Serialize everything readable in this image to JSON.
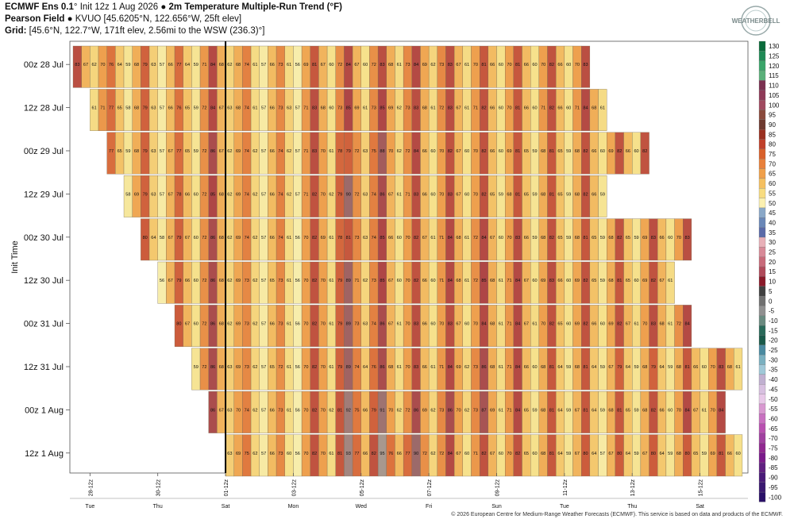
{
  "header": {
    "line1_bold": "ECMWF Ens 0.1",
    "line1_deg": "°",
    "line1_init": " Init 12z 1 Aug 2026 ",
    "line1_bullet": "●",
    "line1_title": " 2m Temperature Multiple-Run Trend (°F)",
    "line2_bold": "Pearson Field",
    "line2_rest": " ● KVUO [45.6205°N, 122.656°W, 25ft elev]",
    "line3_bold": "Grid:",
    "line3_rest": " [45.6°N, 122.7°W, 171ft elev, 2.56mi to the WSW (236.3)°]"
  },
  "logo_text": "WEATHERBELL",
  "footer": "© 2026 European Centre for Medium-Range Weather Forecasts (ECMWF). This service is based on data and products of the ECMWF.",
  "chart_data": {
    "type": "heatmap",
    "ylabel": "Init Time",
    "rows": [
      {
        "label": "00z 28 Jul",
        "start": 0,
        "values": [
          83,
          67,
          62,
          70,
          76,
          64,
          59,
          68,
          79,
          63,
          57,
          66,
          77,
          64,
          59,
          71,
          84,
          68,
          62,
          68,
          74,
          61,
          57,
          66,
          73,
          61,
          56,
          69,
          81,
          67,
          60,
          72,
          84,
          67,
          60,
          72,
          83,
          68,
          61,
          73,
          84,
          69,
          62,
          73,
          83,
          67,
          61,
          70,
          81,
          66,
          60,
          70,
          81,
          66,
          60,
          70,
          82,
          66,
          60,
          70,
          83
        ]
      },
      {
        "label": "12z 28 Jul",
        "start": 2,
        "values": [
          61,
          71,
          77,
          65,
          58,
          68,
          79,
          63,
          57,
          66,
          76,
          65,
          59,
          72,
          84,
          67,
          63,
          68,
          74,
          61,
          57,
          66,
          73,
          63,
          57,
          71,
          83,
          68,
          60,
          73,
          85,
          69,
          61,
          73,
          85,
          69,
          62,
          73,
          83,
          68,
          61,
          72,
          83,
          67,
          61,
          71,
          82,
          66,
          60,
          70,
          81,
          66,
          60,
          71,
          82,
          66,
          60,
          71,
          84,
          68,
          61
        ]
      },
      {
        "label": "00z 29 Jul",
        "start": 4,
        "values": [
          77,
          65,
          59,
          68,
          79,
          63,
          57,
          67,
          77,
          65,
          59,
          72,
          86,
          67,
          62,
          69,
          74,
          62,
          57,
          66,
          74,
          62,
          57,
          71,
          83,
          70,
          61,
          78,
          79,
          72,
          63,
          75,
          88,
          70,
          62,
          72,
          84,
          66,
          60,
          70,
          82,
          67,
          60,
          70,
          82,
          66,
          60,
          69,
          81,
          65,
          59,
          68,
          81,
          65,
          59,
          68,
          82,
          66,
          60,
          69,
          82,
          66,
          60,
          82
        ]
      },
      {
        "label": "12z 29 Jul",
        "start": 6,
        "values": [
          58,
          69,
          79,
          63,
          57,
          67,
          78,
          66,
          60,
          72,
          85,
          68,
          62,
          69,
          74,
          62,
          57,
          66,
          74,
          62,
          57,
          71,
          82,
          70,
          62,
          79,
          90,
          72,
          63,
          74,
          86,
          67,
          61,
          71,
          83,
          66,
          60,
          70,
          83,
          67,
          60,
          70,
          82,
          65,
          59,
          68,
          81,
          65,
          59,
          68,
          81,
          65,
          59,
          68,
          82,
          66,
          59
        ]
      },
      {
        "label": "00z 30 Jul",
        "start": 8,
        "values": [
          80,
          64,
          58,
          67,
          79,
          67,
          60,
          72,
          86,
          68,
          62,
          69,
          74,
          62,
          57,
          66,
          74,
          61,
          56,
          70,
          82,
          69,
          61,
          78,
          81,
          73,
          63,
          74,
          85,
          66,
          60,
          70,
          82,
          67,
          61,
          71,
          84,
          68,
          61,
          72,
          84,
          67,
          60,
          70,
          83,
          66,
          59,
          68,
          82,
          65,
          59,
          68,
          81,
          65,
          59,
          68,
          82,
          65,
          59,
          69,
          83,
          66,
          60,
          70,
          83
        ]
      },
      {
        "label": "12z 30 Jul",
        "start": 10,
        "values": [
          56,
          67,
          79,
          66,
          60,
          72,
          86,
          68,
          62,
          69,
          73,
          62,
          57,
          65,
          73,
          61,
          56,
          70,
          82,
          70,
          61,
          79,
          89,
          71,
          62,
          73,
          85,
          67,
          60,
          70,
          82,
          66,
          60,
          71,
          84,
          68,
          61,
          72,
          85,
          68,
          61,
          71,
          84,
          67,
          60,
          69,
          83,
          66,
          60,
          69,
          82,
          65,
          59,
          68,
          81,
          65,
          60,
          69,
          82,
          67,
          61
        ]
      },
      {
        "label": "00z 31 Jul",
        "start": 12,
        "values": [
          80,
          67,
          60,
          72,
          86,
          68,
          62,
          69,
          73,
          62,
          57,
          66,
          73,
          61,
          56,
          70,
          82,
          70,
          61,
          79,
          89,
          73,
          63,
          74,
          86,
          67,
          61,
          70,
          83,
          66,
          60,
          70,
          83,
          67,
          60,
          70,
          84,
          68,
          61,
          71,
          84,
          67,
          61,
          70,
          82,
          65,
          60,
          69,
          82,
          66,
          60,
          69,
          82,
          67,
          61,
          70,
          83,
          68,
          61,
          72,
          84
        ]
      },
      {
        "label": "12z 31 Jul",
        "start": 14,
        "values": [
          59,
          72,
          86,
          68,
          63,
          69,
          73,
          62,
          57,
          65,
          72,
          61,
          56,
          70,
          82,
          70,
          61,
          79,
          89,
          74,
          64,
          76,
          86,
          68,
          61,
          70,
          83,
          66,
          61,
          71,
          84,
          69,
          62,
          73,
          86,
          68,
          61,
          71,
          84,
          66,
          60,
          68,
          81,
          64,
          59,
          68,
          81,
          64,
          59,
          67,
          79,
          64,
          59,
          68,
          79,
          64,
          59,
          68,
          81,
          66,
          60,
          70,
          83,
          68,
          61
        ]
      },
      {
        "label": "00z 1 Aug",
        "start": 16,
        "values": [
          86,
          67,
          63,
          70,
          74,
          62,
          57,
          66,
          73,
          61,
          56,
          70,
          82,
          70,
          62,
          81,
          92,
          75,
          66,
          79,
          91,
          70,
          62,
          72,
          86,
          69,
          62,
          73,
          86,
          70,
          62,
          73,
          87,
          69,
          61,
          71,
          84,
          65,
          59,
          68,
          81,
          64,
          59,
          67,
          81,
          64,
          59,
          68,
          81,
          65,
          59,
          68,
          82,
          66,
          60,
          70,
          84,
          67,
          61,
          70,
          84
        ]
      },
      {
        "label": "12z 1 Aug",
        "start": 18,
        "values": [
          63,
          69,
          75,
          62,
          57,
          66,
          73,
          60,
          56,
          70,
          82,
          70,
          61,
          81,
          93,
          77,
          66,
          82,
          95,
          76,
          66,
          77,
          90,
          72,
          62,
          72,
          84,
          67,
          60,
          71,
          82,
          67,
          60,
          70,
          82,
          65,
          60,
          68,
          81,
          64,
          59,
          67,
          80,
          64,
          57,
          67,
          80,
          64,
          59,
          67,
          80,
          64,
          59,
          68,
          80,
          65,
          59,
          69,
          81,
          66,
          60
        ]
      }
    ],
    "x_ticks": [
      {
        "label": "28-12z",
        "col": 2
      },
      {
        "label": "30-12z",
        "col": 10
      },
      {
        "label": "01-12z",
        "col": 18
      },
      {
        "label": "03-12z",
        "col": 26
      },
      {
        "label": "05-12z",
        "col": 34
      },
      {
        "label": "07-12z",
        "col": 42
      },
      {
        "label": "09-12z",
        "col": 50
      },
      {
        "label": "11-12z",
        "col": 58
      },
      {
        "label": "13-12z",
        "col": 66
      },
      {
        "label": "15-12z",
        "col": 74
      }
    ],
    "day_labels": [
      {
        "label": "Tue",
        "col": 2
      },
      {
        "label": "Thu",
        "col": 10
      },
      {
        "label": "Sat",
        "col": 18
      },
      {
        "label": "Mon",
        "col": 26
      },
      {
        "label": "Wed",
        "col": 34
      },
      {
        "label": "Fri",
        "col": 42
      },
      {
        "label": "Sun",
        "col": 50
      },
      {
        "label": "Tue",
        "col": 58
      },
      {
        "label": "Thu",
        "col": 66
      },
      {
        "label": "Sat",
        "col": 74
      }
    ],
    "init_marker_col": 18,
    "colorbar": {
      "labels": [
        "130",
        "125",
        "120",
        "115",
        "110",
        "105",
        "100",
        "95",
        "90",
        "85",
        "80",
        "75",
        "70",
        "65",
        "60",
        "55",
        "50",
        "45",
        "40",
        "35",
        "30",
        "25",
        "20",
        "15",
        "10",
        "5",
        "0",
        "-5",
        "-10",
        "-15",
        "-20",
        "-25",
        "-30",
        "-35",
        "-40",
        "-45",
        "-50",
        "-55",
        "-60",
        "-65",
        "-70",
        "-75",
        "-80",
        "-85",
        "-90",
        "-95",
        "-100"
      ],
      "colors": [
        "#0a6a3a",
        "#1f8a55",
        "#3aa56a",
        "#5ab07a",
        "#7a3050",
        "#8e3a58",
        "#a04a60",
        "#8a4a3c",
        "#6e3a30",
        "#9a3020",
        "#c0402a",
        "#d8602a",
        "#e8803a",
        "#f0a04a",
        "#f5c060",
        "#f8dc80",
        "#fbf0b0",
        "#8aa8c8",
        "#6a88b8",
        "#5a6aa8",
        "#e8b0b8",
        "#d88a98",
        "#c86a7a",
        "#b04a5a",
        "#8a1a2a",
        "#404040",
        "#707070",
        "#909090",
        "#6a8a80",
        "#2a6a5a",
        "#1a5a4a",
        "#4a8aa0",
        "#7ab0c0",
        "#a0c8d8",
        "#c0b0d0",
        "#d8c0e0",
        "#e8c8e8",
        "#d898d0",
        "#c870c0",
        "#b850b0",
        "#a040a0",
        "#902890",
        "#7a1a8a",
        "#602080",
        "#4a1a78",
        "#3a1870",
        "#2a1068"
      ]
    }
  }
}
